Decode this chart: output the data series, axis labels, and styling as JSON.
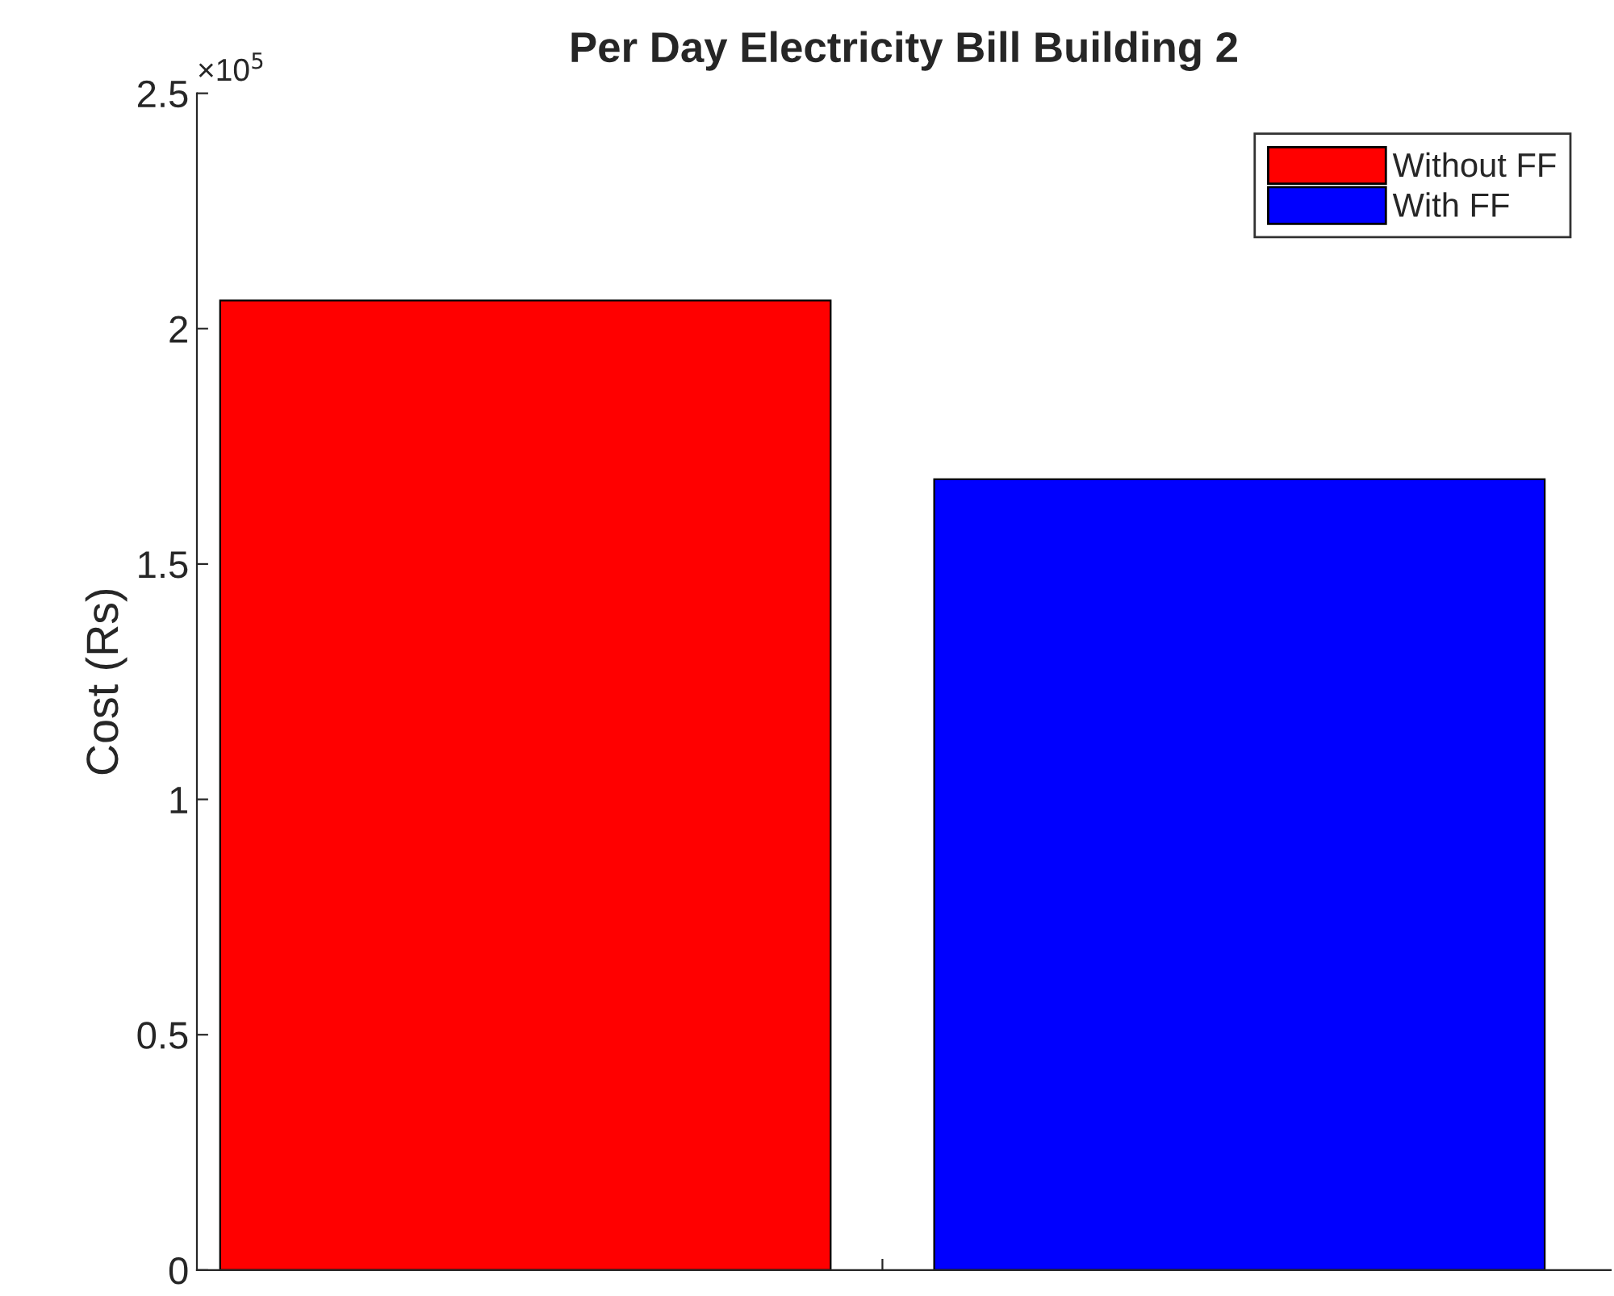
{
  "chart_data": {
    "type": "bar",
    "title": "Per Day Electricity Bill Building 2",
    "ylabel": "Cost (Rs)",
    "categories": [
      null,
      null
    ],
    "series": [
      {
        "name": "Without FF",
        "color": "#ff0000",
        "values": [
          2.06,
          null
        ]
      },
      {
        "name": "With FF",
        "color": "#0000ff",
        "values": [
          null,
          1.68
        ]
      }
    ],
    "ylim": [
      0,
      2.5
    ],
    "yticks": [
      0,
      0.5,
      1,
      1.5,
      2,
      2.5
    ],
    "annotations": [
      "×10$^{5}$"
    ],
    "legend": "top right",
    "grid": false
  }
}
